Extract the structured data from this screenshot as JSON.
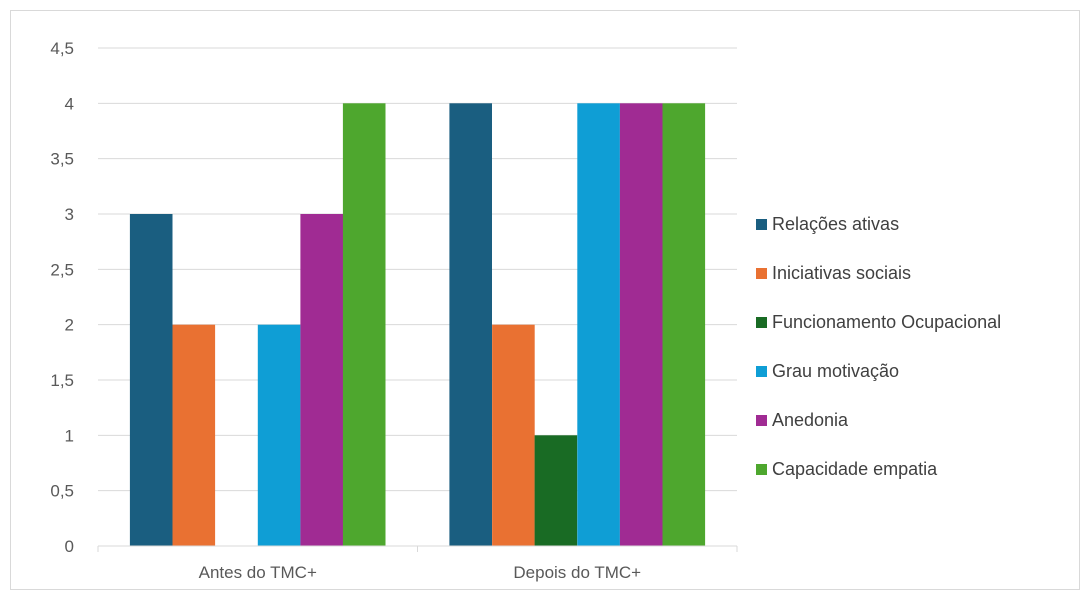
{
  "chart_data": {
    "type": "bar",
    "title": "",
    "xlabel": "",
    "ylabel": "",
    "categories": [
      "Antes do TMC+",
      "Depois do TMC+"
    ],
    "ylim": [
      0,
      4.5
    ],
    "yticks": [
      "0",
      "0,5",
      "1",
      "1,5",
      "2",
      "2,5",
      "3",
      "3,5",
      "4",
      "4,5"
    ],
    "ytick_values": [
      0,
      0.5,
      1,
      1.5,
      2,
      2.5,
      3,
      3.5,
      4,
      4.5
    ],
    "grid": true,
    "legend_position": "right",
    "series": [
      {
        "name": "Relações ativas",
        "color": "#1a5e80",
        "values": [
          3,
          4
        ]
      },
      {
        "name": "Iniciativas sociais",
        "color": "#e97132",
        "values": [
          2,
          2
        ]
      },
      {
        "name": "Funcionamento Ocupacional",
        "color": "#196b24",
        "values": [
          0,
          1
        ]
      },
      {
        "name": "Grau motivação",
        "color": "#0f9ed5",
        "values": [
          2,
          4
        ]
      },
      {
        "name": "Anedonia",
        "color": "#a02b93",
        "values": [
          3,
          4
        ]
      },
      {
        "name": "Capacidade empatia",
        "color": "#4ea72e",
        "values": [
          4,
          4
        ]
      }
    ]
  }
}
